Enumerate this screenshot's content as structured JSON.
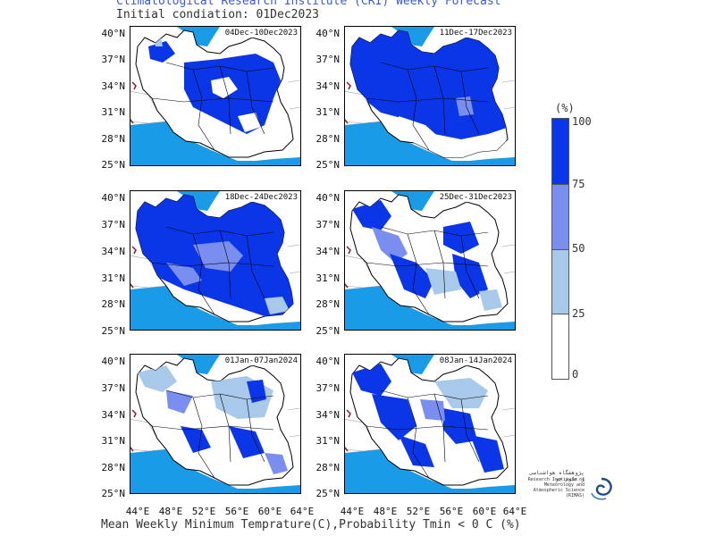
{
  "header": {
    "title": "Climatological Research Institute (CRI) Weekly Forecast",
    "subtitle": "Initial condiation: 01Dec2023"
  },
  "footer": {
    "caption": "Mean Weekly Minimum Temprature(C),Probability Tmin < 0 C (%)"
  },
  "axes": {
    "lat_labels": [
      "40°N",
      "37°N",
      "34°N",
      "31°N",
      "28°N",
      "25°N"
    ],
    "lon_labels": [
      "44°E",
      "48°E",
      "52°E",
      "56°E",
      "60°E",
      "64°E"
    ]
  },
  "panels": [
    {
      "label": "04Dec-10Dec2023",
      "coverage": "high"
    },
    {
      "label": "11Dec-17Dec2023",
      "coverage": "very-high"
    },
    {
      "label": "18Dec-24Dec2023",
      "coverage": "very-high"
    },
    {
      "label": "25Dec-31Dec2023",
      "coverage": "mixed"
    },
    {
      "label": "01Jan-07Jan2024",
      "coverage": "mixed-low"
    },
    {
      "label": "08Jan-14Jan2024",
      "coverage": "mixed"
    }
  ],
  "legend": {
    "unit": "(%)",
    "levels": [
      "100",
      "75",
      "50",
      "25",
      "0"
    ],
    "colors": [
      "#0b36e8",
      "#7a8ef0",
      "#a9c9eb",
      "#ffffff"
    ]
  },
  "logo": {
    "persian_text": "پژوهشگاه هواشناسی و علوم جو",
    "english_text": "Research Institute of Meteorology and Atmospheric Science (RIMAS)"
  },
  "colors": {
    "sea": "#1a9be8",
    "lake_accent": "#8b1a3a",
    "border": "#000000",
    "neighbor_border": "#9a9a9a"
  }
}
